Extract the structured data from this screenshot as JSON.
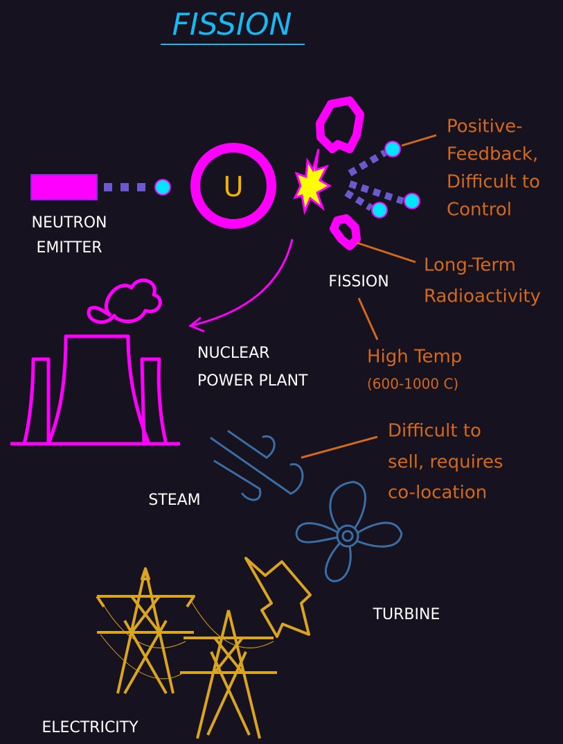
{
  "title": "FISSION",
  "uranium": "U",
  "labels": {
    "neutron_emitter": [
      "NEUTRON",
      "EMITTER"
    ],
    "fission": "FISSION",
    "power_plant": [
      "NUCLEAR",
      "POWER PLANT"
    ],
    "steam": "STEAM",
    "turbine": "TURBINE",
    "electricity": "ELECTRICITY"
  },
  "notes": {
    "feedback": [
      "Positive-",
      "Feedback,",
      "Difficult to",
      "Control"
    ],
    "radioactivity": [
      "Long-Term",
      "Radioactivity"
    ],
    "temperature": [
      "High Temp",
      "(600-1000 C)"
    ],
    "steam": [
      "Difficult to",
      "sell, requires",
      "co-location"
    ]
  }
}
